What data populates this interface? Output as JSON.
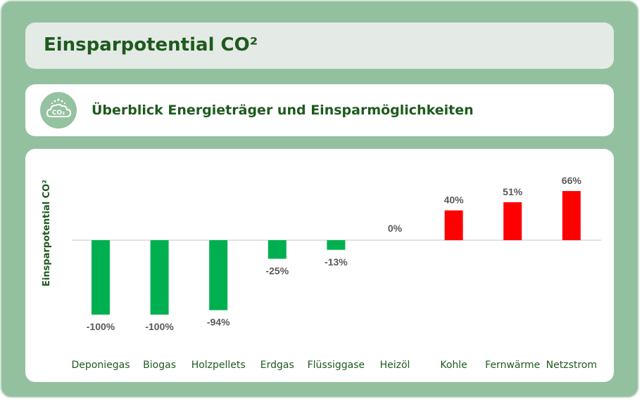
{
  "header": {
    "title": "Einsparpotential CO²"
  },
  "subheader": {
    "icon": "co2-cloud-icon",
    "icon_text": "CO₂",
    "text": "Überblick Energieträger und Einsparmöglichkeiten"
  },
  "colors": {
    "negative": "#00b050",
    "positive": "#ff0000",
    "heading": "#1e5a1e",
    "frame": "#93c19f"
  },
  "chart_data": {
    "type": "bar",
    "ylabel": "Einsparpotential CO²",
    "categories": [
      "Deponiegas",
      "Biogas",
      "Holzpellets",
      "Erdgas",
      "Flüssiggase",
      "Heizöl",
      "Kohle",
      "Fernwärme",
      "Netzstrom"
    ],
    "values": [
      -100,
      -100,
      -94,
      -25,
      -13,
      0,
      40,
      51,
      66
    ],
    "labels": [
      "-100%",
      "-100%",
      "-94%",
      "-25%",
      "-13%",
      "0%",
      "40%",
      "51%",
      "66%"
    ],
    "ylim": [
      -100,
      66
    ],
    "grid": false,
    "legend": "none"
  }
}
